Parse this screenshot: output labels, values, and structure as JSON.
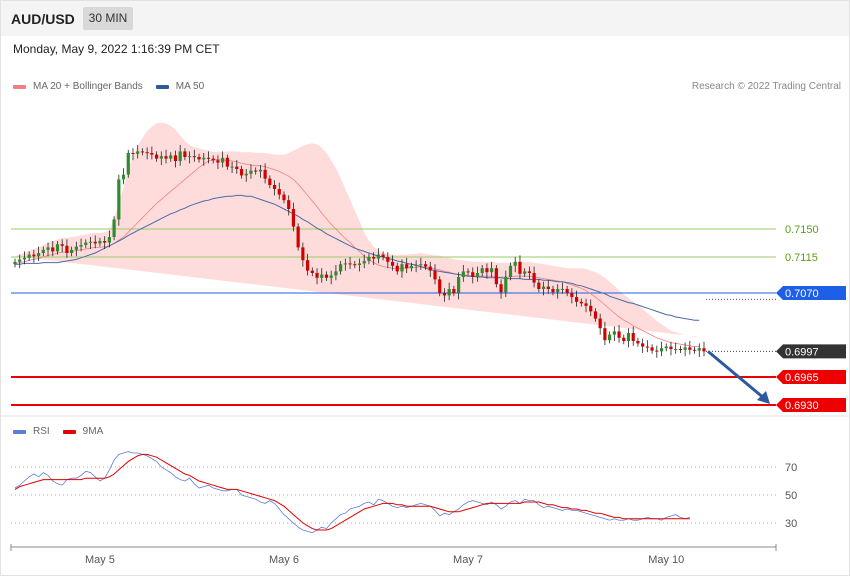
{
  "header": {
    "pair": "AUD/USD",
    "timeframe": "30 MIN",
    "datetime": "Monday, May 9, 2022 1:16:39 PM CET"
  },
  "legend": {
    "bb_label": "MA 20 + Bollinger Bands",
    "ma50_label": "MA 50",
    "credit": "Research © 2022 Trading Central",
    "rsi_label": "RSI",
    "ma9_label": "9MA"
  },
  "colors": {
    "bullish": "#2e8b2e",
    "bearish": "#d40000",
    "bb_fill": "#ffd6d6",
    "ma20": "#f08080",
    "ma50": "#4a6aa8",
    "resistance": "#99cc66",
    "pivot": "#1e5fe8",
    "support": "#ee0000",
    "last": "#333333",
    "arrow": "#2d5a9e",
    "rsi": "#5a7fd6",
    "rsi_ma": "#e00000"
  },
  "chart_data": [
    {
      "type": "candlestick",
      "title": "AUD/USD",
      "timeframe": "30 MIN",
      "x_ticks": [
        "May 5",
        "May 6",
        "May 7",
        "May 10"
      ],
      "price_levels": [
        {
          "value": 0.715,
          "label": "0.7150",
          "kind": "resistance"
        },
        {
          "value": 0.7115,
          "label": "0.7115",
          "kind": "resistance"
        },
        {
          "value": 0.707,
          "label": "0.7070",
          "kind": "pivot"
        },
        {
          "value": 0.6997,
          "label": "0.6997",
          "kind": "last"
        },
        {
          "value": 0.6965,
          "label": "0.6965",
          "kind": "support"
        },
        {
          "value": 0.693,
          "label": "0.6930",
          "kind": "support"
        }
      ],
      "ylim": [
        0.6915,
        0.726
      ],
      "close": [
        0.7109,
        0.7112,
        0.7114,
        0.7118,
        0.7116,
        0.712,
        0.7124,
        0.7127,
        0.7122,
        0.7131,
        0.7129,
        0.712,
        0.7124,
        0.7128,
        0.713,
        0.7133,
        0.7134,
        0.7132,
        0.7135,
        0.7133,
        0.714,
        0.7162,
        0.7212,
        0.7218,
        0.7245,
        0.7244,
        0.7247,
        0.7246,
        0.7245,
        0.7243,
        0.7238,
        0.7241,
        0.7238,
        0.7242,
        0.7235,
        0.7247,
        0.724,
        0.7241,
        0.724,
        0.7237,
        0.7239,
        0.7238,
        0.7236,
        0.7233,
        0.7239,
        0.7228,
        0.7228,
        0.7225,
        0.7217,
        0.7219,
        0.7223,
        0.7222,
        0.7224,
        0.7213,
        0.7205,
        0.72,
        0.7193,
        0.7186,
        0.7175,
        0.7153,
        0.7127,
        0.7111,
        0.7098,
        0.7095,
        0.7089,
        0.7093,
        0.7089,
        0.7092,
        0.7097,
        0.7106,
        0.7107,
        0.7106,
        0.7105,
        0.7107,
        0.711,
        0.7115,
        0.7113,
        0.7118,
        0.7115,
        0.7109,
        0.7104,
        0.7097,
        0.7106,
        0.7101,
        0.7104,
        0.7105,
        0.7106,
        0.7103,
        0.7098,
        0.7087,
        0.707,
        0.7067,
        0.7075,
        0.707,
        0.709,
        0.7097,
        0.7096,
        0.709,
        0.7095,
        0.7101,
        0.7096,
        0.7101,
        0.7081,
        0.7071,
        0.709,
        0.7104,
        0.7109,
        0.7094,
        0.7097,
        0.7095,
        0.7083,
        0.7075,
        0.7078,
        0.7075,
        0.7071,
        0.7075,
        0.7075,
        0.707,
        0.7065,
        0.7059,
        0.7057,
        0.7054,
        0.7047,
        0.7038,
        0.7026,
        0.7011,
        0.7018,
        0.7022,
        0.7014,
        0.701,
        0.702,
        0.701,
        0.7007,
        0.7003,
        0.7002,
        0.6998,
        0.6997,
        0.7001,
        0.7003,
        0.7,
        0.7,
        0.6999,
        0.7002,
        0.6999,
        0.6998,
        0.7001,
        0.6997
      ],
      "ma20": [
        0.7107,
        0.7108,
        0.7109,
        0.7111,
        0.7112,
        0.7113,
        0.7115,
        0.7117,
        0.7118,
        0.712,
        0.7121,
        0.7121,
        0.7122,
        0.7123,
        0.7124,
        0.7125,
        0.7126,
        0.7127,
        0.7127,
        0.7128,
        0.7129,
        0.7132,
        0.7136,
        0.714,
        0.7146,
        0.7152,
        0.7158,
        0.7164,
        0.717,
        0.7176,
        0.7182,
        0.7187,
        0.7192,
        0.7197,
        0.7202,
        0.7207,
        0.7212,
        0.7217,
        0.7222,
        0.7227,
        0.7231,
        0.7235,
        0.7236,
        0.7237,
        0.7236,
        0.7236,
        0.7235,
        0.7234,
        0.7232,
        0.7231,
        0.723,
        0.7229,
        0.7229,
        0.7228,
        0.7226,
        0.7224,
        0.7222,
        0.7219,
        0.7216,
        0.7212,
        0.7206,
        0.7199,
        0.7192,
        0.7185,
        0.7178,
        0.717,
        0.7163,
        0.7156,
        0.715,
        0.7144,
        0.7138,
        0.7133,
        0.7127,
        0.7122,
        0.7116,
        0.7112,
        0.7108,
        0.7105,
        0.7103,
        0.7102,
        0.7101,
        0.71,
        0.7101,
        0.7101,
        0.7102,
        0.7102,
        0.7103,
        0.7102,
        0.7101,
        0.71,
        0.7099,
        0.7097,
        0.7096,
        0.7094,
        0.7093,
        0.7093,
        0.7092,
        0.7091,
        0.7091,
        0.7091,
        0.7091,
        0.7091,
        0.709,
        0.709,
        0.709,
        0.709,
        0.7091,
        0.7091,
        0.7091,
        0.7091,
        0.709,
        0.7089,
        0.7088,
        0.7087,
        0.7086,
        0.7085,
        0.7084,
        0.7082,
        0.708,
        0.7078,
        0.7076,
        0.7073,
        0.7069,
        0.7065,
        0.706,
        0.7055,
        0.705,
        0.7045,
        0.704,
        0.7036,
        0.7033,
        0.7029,
        0.7026,
        0.7023,
        0.702,
        0.7017,
        0.7014,
        0.7012,
        0.701,
        0.7008,
        0.7007,
        0.7006,
        0.7005,
        0.7004,
        0.7003,
        0.7003
      ],
      "bb_width": [
        0.0009,
        0.001,
        0.0011,
        0.0012,
        0.0013,
        0.0014,
        0.0015,
        0.0016,
        0.0017,
        0.0017,
        0.0018,
        0.0018,
        0.0018,
        0.0018,
        0.0018,
        0.0018,
        0.0018,
        0.0018,
        0.0018,
        0.0018,
        0.002,
        0.003,
        0.0048,
        0.0062,
        0.0078,
        0.0088,
        0.0096,
        0.01,
        0.0102,
        0.0102,
        0.01,
        0.0096,
        0.009,
        0.0082,
        0.0072,
        0.006,
        0.0048,
        0.0038,
        0.003,
        0.0024,
        0.0018,
        0.0013,
        0.001,
        0.001,
        0.001,
        0.0011,
        0.0012,
        0.0013,
        0.0014,
        0.0015,
        0.0016,
        0.0016,
        0.0016,
        0.0017,
        0.0018,
        0.0019,
        0.0021,
        0.0024,
        0.0029,
        0.0036,
        0.0045,
        0.0055,
        0.0064,
        0.0072,
        0.0078,
        0.0082,
        0.0082,
        0.008,
        0.0076,
        0.007,
        0.0062,
        0.0054,
        0.0046,
        0.0038,
        0.003,
        0.0024,
        0.002,
        0.0018,
        0.0017,
        0.0017,
        0.0017,
        0.0017,
        0.0017,
        0.0017,
        0.0017,
        0.0017,
        0.0017,
        0.0017,
        0.0017,
        0.0017,
        0.0018,
        0.0018,
        0.0018,
        0.0018,
        0.0018,
        0.0018,
        0.0018,
        0.0018,
        0.0018,
        0.0018,
        0.0018,
        0.0018,
        0.0018,
        0.0018,
        0.0018,
        0.0018,
        0.0018,
        0.0018,
        0.0018,
        0.0018,
        0.0018,
        0.0018,
        0.0018,
        0.0018,
        0.0018,
        0.0018,
        0.0018,
        0.0019,
        0.0021,
        0.0023,
        0.0025,
        0.0027,
        0.0029,
        0.0031,
        0.0033,
        0.0034,
        0.0034,
        0.0034,
        0.0033,
        0.0032,
        0.0031,
        0.003,
        0.0029,
        0.0027,
        0.0025,
        0.0023,
        0.0021,
        0.0019,
        0.0017,
        0.0015,
        0.0014,
        0.0013,
        0.0012,
        0.0012,
        0.0012,
        0.0012
      ],
      "ma50": [
        0.7106,
        0.7106,
        0.7107,
        0.7107,
        0.7107,
        0.7107,
        0.7108,
        0.7108,
        0.7108,
        0.7108,
        0.7109,
        0.711,
        0.7111,
        0.7112,
        0.7114,
        0.7116,
        0.7118,
        0.712,
        0.7123,
        0.7126,
        0.7129,
        0.7132,
        0.7135,
        0.7138,
        0.7142,
        0.7145,
        0.7148,
        0.7151,
        0.7154,
        0.7157,
        0.716,
        0.7163,
        0.7166,
        0.7169,
        0.7171,
        0.7174,
        0.7176,
        0.7179,
        0.7181,
        0.7183,
        0.7185,
        0.7186,
        0.7188,
        0.7189,
        0.719,
        0.7191,
        0.7191,
        0.7192,
        0.7192,
        0.7191,
        0.7191,
        0.7189,
        0.7187,
        0.7185,
        0.7183,
        0.7181,
        0.7178,
        0.7175,
        0.7172,
        0.7169,
        0.7166,
        0.7162,
        0.7159,
        0.7155,
        0.7151,
        0.7148,
        0.7144,
        0.7141,
        0.7138,
        0.7135,
        0.7132,
        0.7129,
        0.7126,
        0.7124,
        0.7122,
        0.712,
        0.7118,
        0.7116,
        0.7115,
        0.7113,
        0.7112,
        0.711,
        0.7109,
        0.7107,
        0.7106,
        0.7105,
        0.7103,
        0.7101,
        0.7099,
        0.7098,
        0.7097,
        0.7096,
        0.7095,
        0.7094,
        0.7093,
        0.7092,
        0.7091,
        0.7091,
        0.709,
        0.709,
        0.7089,
        0.7089,
        0.7089,
        0.7089,
        0.7088,
        0.7088,
        0.7088,
        0.7088,
        0.7087,
        0.7087,
        0.7087,
        0.7087,
        0.7086,
        0.7086,
        0.7085,
        0.7084,
        0.7084,
        0.7083,
        0.7082,
        0.708,
        0.7079,
        0.7077,
        0.7075,
        0.7073,
        0.7071,
        0.7069,
        0.7066,
        0.7064,
        0.7062,
        0.706,
        0.7058,
        0.7057,
        0.7055,
        0.7053,
        0.7051,
        0.7049,
        0.7047,
        0.7045,
        0.7043,
        0.7042,
        0.704,
        0.7039,
        0.7038,
        0.7037,
        0.7036,
        0.7036
      ],
      "forecast_arrow": {
        "from": 0.6997,
        "to": 0.693
      }
    },
    {
      "type": "line",
      "title": "RSI",
      "y_ticks": [
        70,
        50,
        30
      ],
      "ylim": [
        10,
        90
      ],
      "series": [
        {
          "name": "RSI",
          "values": [
            55,
            57,
            60,
            63,
            65,
            63,
            66,
            64,
            60,
            58,
            57,
            61,
            62,
            62,
            64,
            67,
            66,
            63,
            60,
            62,
            68,
            75,
            79,
            80,
            81,
            80,
            80,
            79,
            78,
            76,
            74,
            70,
            68,
            66,
            63,
            61,
            60,
            62,
            58,
            55,
            56,
            57,
            55,
            54,
            53,
            53,
            54,
            54,
            50,
            49,
            48,
            47,
            45,
            44,
            46,
            44,
            40,
            36,
            33,
            30,
            27,
            25,
            24,
            23,
            25,
            27,
            26,
            30,
            33,
            36,
            37,
            40,
            41,
            42,
            44,
            45,
            43,
            47,
            46,
            44,
            42,
            41,
            42,
            41,
            42,
            43,
            44,
            43,
            42,
            39,
            35,
            37,
            36,
            38,
            40,
            43,
            45,
            46,
            45,
            44,
            43,
            45,
            43,
            40,
            42,
            45,
            46,
            44,
            47,
            46,
            46,
            43,
            41,
            42,
            41,
            40,
            39,
            40,
            39,
            39,
            38,
            37,
            36,
            35,
            34,
            33,
            32,
            33,
            32,
            32,
            33,
            32,
            32,
            33,
            34,
            33,
            33,
            32,
            34,
            35,
            36,
            34,
            33,
            34
          ]
        },
        {
          "name": "9MA",
          "values": [
            54,
            56,
            57,
            58,
            59,
            60,
            61,
            61,
            61,
            61,
            61,
            61,
            61,
            61,
            61,
            62,
            62,
            62,
            62,
            62,
            63,
            65,
            68,
            71,
            74,
            76,
            78,
            79,
            79,
            78,
            77,
            75,
            73,
            71,
            69,
            67,
            65,
            64,
            62,
            60,
            59,
            58,
            57,
            56,
            55,
            54,
            54,
            54,
            53,
            52,
            51,
            50,
            49,
            48,
            47,
            46,
            44,
            42,
            39,
            36,
            33,
            30,
            28,
            26,
            25,
            25,
            25,
            26,
            28,
            30,
            32,
            34,
            36,
            38,
            40,
            41,
            42,
            43,
            44,
            44,
            44,
            43,
            43,
            42,
            42,
            42,
            42,
            42,
            42,
            41,
            40,
            39,
            38,
            38,
            38,
            39,
            40,
            41,
            42,
            43,
            44,
            44,
            44,
            44,
            44,
            44,
            44,
            44,
            45,
            45,
            45,
            45,
            44,
            43,
            43,
            42,
            41,
            41,
            40,
            40,
            39,
            39,
            38,
            37,
            37,
            36,
            35,
            34,
            34,
            33,
            33,
            33,
            33,
            33,
            33,
            33,
            33,
            33,
            33,
            33,
            33,
            33,
            33,
            33
          ]
        }
      ]
    }
  ]
}
